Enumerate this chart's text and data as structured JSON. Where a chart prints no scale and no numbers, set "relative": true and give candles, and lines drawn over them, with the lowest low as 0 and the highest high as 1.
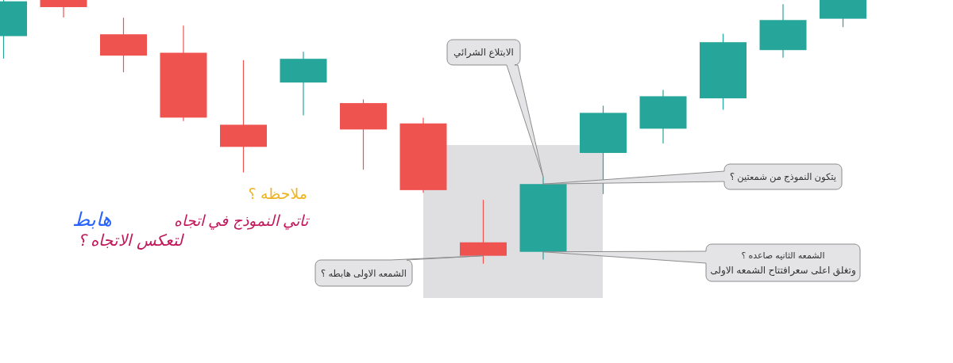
{
  "chart_data": {
    "type": "candlestick",
    "relative": true,
    "categories": [
      null,
      null,
      null,
      null,
      null,
      null,
      null,
      null,
      null,
      null,
      null,
      null,
      null,
      null,
      null
    ],
    "ohlc": [
      [
        0.863,
        1,
        0.778,
        0.995
      ],
      [
        1,
        1,
        0.934,
        0.973
      ],
      [
        0.87,
        0.933,
        0.726,
        0.789
      ],
      [
        0.8,
        0.903,
        0.541,
        0.554
      ],
      [
        0.527,
        0.772,
        0.346,
        0.443
      ],
      [
        0.687,
        0.804,
        0.563,
        0.777
      ],
      [
        0.609,
        0.623,
        0.357,
        0.509
      ],
      [
        0.532,
        0.554,
        0.269,
        0.279
      ],
      [
        0.081,
        0.242,
        0,
        0.03
      ],
      [
        0.045,
        0.329,
        0.016,
        0.302
      ],
      [
        0.42,
        0.599,
        0.264,
        0.572
      ],
      [
        0.512,
        0.659,
        0.456,
        0.635
      ],
      [
        0.627,
        0.872,
        0.584,
        0.84
      ],
      [
        0.81,
        0.984,
        0.781,
        0.924
      ],
      [
        0.929,
        1,
        0.897,
        1
      ]
    ],
    "colors": [
      "#26a69a",
      "#ef5350",
      "#ef5350",
      "#ef5350",
      "#ef5350",
      "#26a69a",
      "#ef5350",
      "#ef5350",
      "#ef5350",
      "#26a69a",
      "#26a69a",
      "#26a69a",
      "#26a69a",
      "#26a69a",
      "#26a69a"
    ],
    "annotations": [
      "ملاحظه ؟",
      "تاتي النموذج في اتجاه",
      "هابط",
      "لتعكس الاتجاه ؟",
      "الابتلاع الشرائي",
      "يتكون النموذج من شمعتين ؟",
      "الشمعه الثانيه صاعده ؟\nوتغلق اعلى سعرافتتاح الشمعه الاولى",
      "الشمعه الاولى هابطه ؟"
    ]
  }
}
